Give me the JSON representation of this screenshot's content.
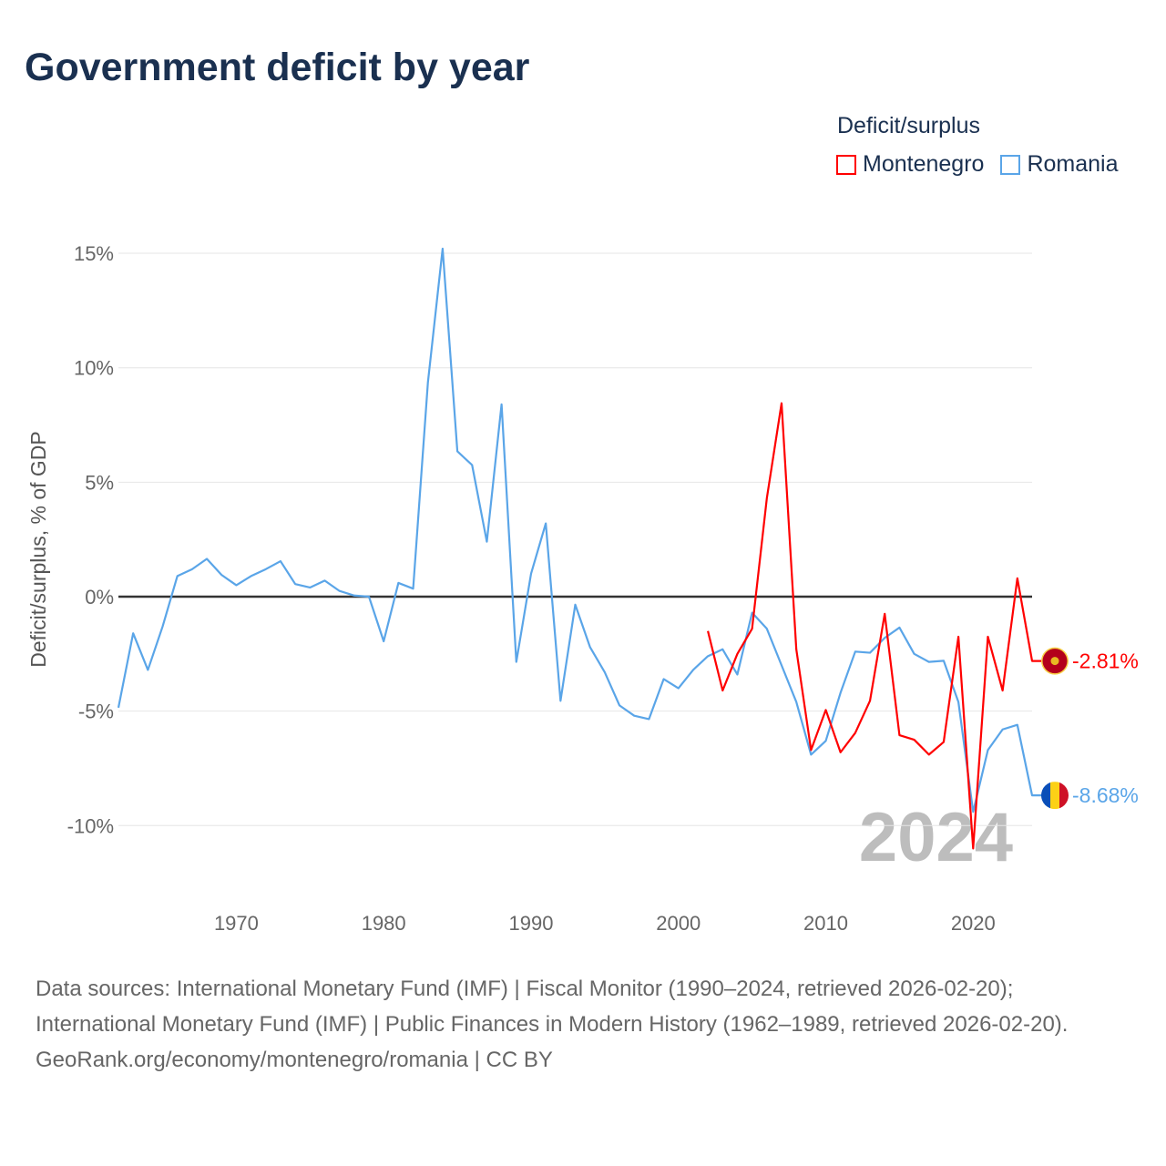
{
  "title": "Government deficit by year",
  "legend": {
    "title": "Deficit/surplus",
    "items": [
      {
        "label": "Montenegro",
        "color": "#ff0000"
      },
      {
        "label": "Romania",
        "color": "#5aa5e8"
      }
    ]
  },
  "year_watermark": "2024",
  "footer": {
    "sources": "Data sources: International Monetary Fund (IMF) | Fiscal Monitor (1990–2024, retrieved 2026-02-20); International Monetary Fund (IMF) | Public Finances in Modern History (1962–1989, retrieved 2026-02-20).",
    "credit": "GeoRank.org/economy/montenegro/romania | CC BY"
  },
  "chart_data": {
    "type": "line",
    "title": "Government deficit by year",
    "xlabel": "",
    "ylabel": "Deficit/surplus, % of GDP",
    "xlim": [
      1962,
      2024
    ],
    "ylim": [
      -12,
      16
    ],
    "x_ticks": [
      1970,
      1980,
      1990,
      2000,
      2010,
      2020
    ],
    "y_ticks": [
      15,
      10,
      5,
      0,
      -5,
      -10
    ],
    "y_tick_labels": [
      "15%",
      "10%",
      "5%",
      "0%",
      "-5%",
      "-10%"
    ],
    "grid": true,
    "legend_position": "top-right",
    "series": [
      {
        "name": "Montenegro",
        "color": "#ff0000",
        "end_label": "-2.81%",
        "x": [
          2002,
          2003,
          2004,
          2005,
          2006,
          2007,
          2008,
          2009,
          2010,
          2011,
          2012,
          2013,
          2014,
          2015,
          2016,
          2017,
          2018,
          2019,
          2020,
          2021,
          2022,
          2023,
          2024
        ],
        "values": [
          -1.5,
          -4.1,
          -2.5,
          -1.4,
          4.3,
          8.45,
          -2.3,
          -6.7,
          -4.95,
          -6.8,
          -5.95,
          -4.55,
          -0.75,
          -6.05,
          -6.25,
          -6.9,
          -6.35,
          -1.75,
          -11.0,
          -1.75,
          -4.1,
          0.8,
          -2.81
        ]
      },
      {
        "name": "Romania",
        "color": "#5aa5e8",
        "end_label": "-8.68%",
        "x": [
          1962,
          1963,
          1964,
          1965,
          1966,
          1967,
          1968,
          1969,
          1970,
          1971,
          1972,
          1973,
          1974,
          1975,
          1976,
          1977,
          1978,
          1979,
          1980,
          1981,
          1982,
          1983,
          1984,
          1985,
          1986,
          1987,
          1988,
          1989,
          1990,
          1991,
          1992,
          1993,
          1994,
          1995,
          1996,
          1997,
          1998,
          1999,
          2000,
          2001,
          2002,
          2003,
          2004,
          2005,
          2006,
          2007,
          2008,
          2009,
          2010,
          2011,
          2012,
          2013,
          2014,
          2015,
          2016,
          2017,
          2018,
          2019,
          2020,
          2021,
          2022,
          2023,
          2024
        ],
        "values": [
          -4.85,
          -1.6,
          -3.2,
          -1.3,
          0.9,
          1.2,
          1.65,
          0.95,
          0.5,
          0.9,
          1.2,
          1.55,
          0.55,
          0.4,
          0.7,
          0.25,
          0.05,
          0,
          -1.95,
          0.6,
          0.35,
          9.35,
          15.2,
          6.35,
          5.75,
          2.4,
          8.4,
          -2.85,
          1.0,
          3.2,
          -4.55,
          -0.35,
          -2.2,
          -3.3,
          -4.75,
          -5.2,
          -5.35,
          -3.6,
          -4.0,
          -3.2,
          -2.6,
          -2.3,
          -3.4,
          -0.7,
          -1.4,
          -3.0,
          -4.6,
          -6.9,
          -6.3,
          -4.2,
          -2.4,
          -2.45,
          -1.8,
          -1.35,
          -2.5,
          -2.85,
          -2.8,
          -4.6,
          -9.4,
          -6.7,
          -5.8,
          -5.6,
          -8.68
        ]
      }
    ]
  }
}
